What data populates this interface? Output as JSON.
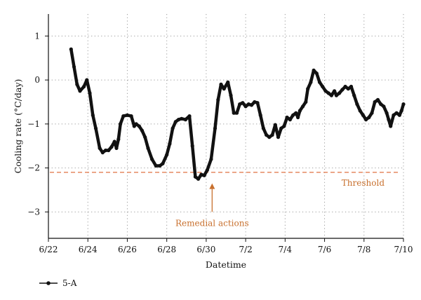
{
  "chart_data": {
    "type": "line",
    "xlabel": "Datetime",
    "ylabel": "Cooling rate (°C/day)",
    "xlim": [
      "6/22",
      "7/10"
    ],
    "ylim": [
      -3.6,
      1.5
    ],
    "xticks": [
      "6/22",
      "6/24",
      "6/26",
      "6/28",
      "6/30",
      "7/2",
      "7/4",
      "7/6",
      "7/8",
      "7/10"
    ],
    "yticks": [
      1,
      0,
      -1,
      -2,
      -3
    ],
    "grid": "dotted",
    "legend": "bottom-left",
    "series": [
      {
        "name": "5-A",
        "color": "#111111",
        "marker": "circle",
        "x": [
          23.15,
          23.3,
          23.45,
          23.6,
          23.8,
          23.95,
          24.1,
          24.25,
          24.4,
          24.6,
          24.75,
          24.9,
          25.05,
          25.2,
          25.35,
          25.45,
          25.55,
          25.65,
          25.8,
          26.0,
          26.2,
          26.35,
          26.45,
          26.6,
          26.75,
          26.9,
          27.05,
          27.25,
          27.45,
          27.65,
          27.8,
          28.0,
          28.15,
          28.3,
          28.45,
          28.6,
          28.75,
          28.95,
          29.15,
          29.3,
          29.45,
          29.6,
          29.75,
          29.9,
          30.05,
          30.25,
          30.45,
          30.6,
          30.75,
          30.9,
          31.1,
          31.25,
          31.4,
          31.55,
          31.7,
          31.85,
          32.0,
          32.15,
          32.3,
          32.45,
          32.6,
          32.75,
          32.9,
          33.05,
          33.2,
          33.35,
          33.5,
          33.65,
          33.8,
          33.95,
          34.1,
          34.25,
          34.4,
          34.55,
          34.65,
          34.75,
          34.9,
          35.05,
          35.15,
          35.3,
          35.45,
          35.6,
          35.75,
          35.9,
          36.05,
          36.2,
          36.35,
          36.5,
          36.6,
          36.75,
          36.9,
          37.05,
          37.2,
          37.35,
          37.5,
          37.65,
          37.8,
          37.95,
          38.1,
          38.25,
          38.4,
          38.55,
          38.7,
          38.85,
          39.0,
          39.15,
          39.25,
          39.35,
          39.5,
          39.65,
          39.8,
          39.9,
          40.0
        ],
        "y": [
          0.7,
          0.3,
          -0.1,
          -0.25,
          -0.15,
          0.0,
          -0.3,
          -0.8,
          -1.1,
          -1.55,
          -1.65,
          -1.6,
          -1.6,
          -1.52,
          -1.4,
          -1.55,
          -1.35,
          -1.0,
          -0.82,
          -0.8,
          -0.82,
          -1.05,
          -1.0,
          -1.05,
          -1.15,
          -1.3,
          -1.55,
          -1.8,
          -1.95,
          -1.95,
          -1.9,
          -1.7,
          -1.45,
          -1.1,
          -0.95,
          -0.9,
          -0.88,
          -0.9,
          -0.82,
          -1.5,
          -2.2,
          -2.25,
          -2.15,
          -2.17,
          -2.05,
          -1.8,
          -1.1,
          -0.45,
          -0.1,
          -0.2,
          -0.05,
          -0.35,
          -0.75,
          -0.75,
          -0.55,
          -0.52,
          -0.6,
          -0.55,
          -0.57,
          -0.5,
          -0.52,
          -0.8,
          -1.1,
          -1.25,
          -1.3,
          -1.25,
          -1.02,
          -1.3,
          -1.1,
          -1.05,
          -0.85,
          -0.9,
          -0.8,
          -0.75,
          -0.85,
          -0.7,
          -0.6,
          -0.5,
          -0.2,
          -0.05,
          0.22,
          0.15,
          -0.05,
          -0.15,
          -0.25,
          -0.3,
          -0.35,
          -0.25,
          -0.35,
          -0.3,
          -0.22,
          -0.15,
          -0.2,
          -0.15,
          -0.35,
          -0.55,
          -0.7,
          -0.8,
          -0.9,
          -0.85,
          -0.75,
          -0.5,
          -0.45,
          -0.55,
          -0.6,
          -0.75,
          -0.9,
          -1.05,
          -0.8,
          -0.75,
          -0.8,
          -0.7,
          -0.55
        ]
      }
    ],
    "threshold": {
      "label": "Threshold",
      "value": -2.1,
      "color": "#e07040"
    },
    "annotation": {
      "label": "Remedial actions",
      "x": 30.3,
      "y_from": -3.0,
      "y_to": -2.35,
      "color": "#c8702e"
    }
  }
}
